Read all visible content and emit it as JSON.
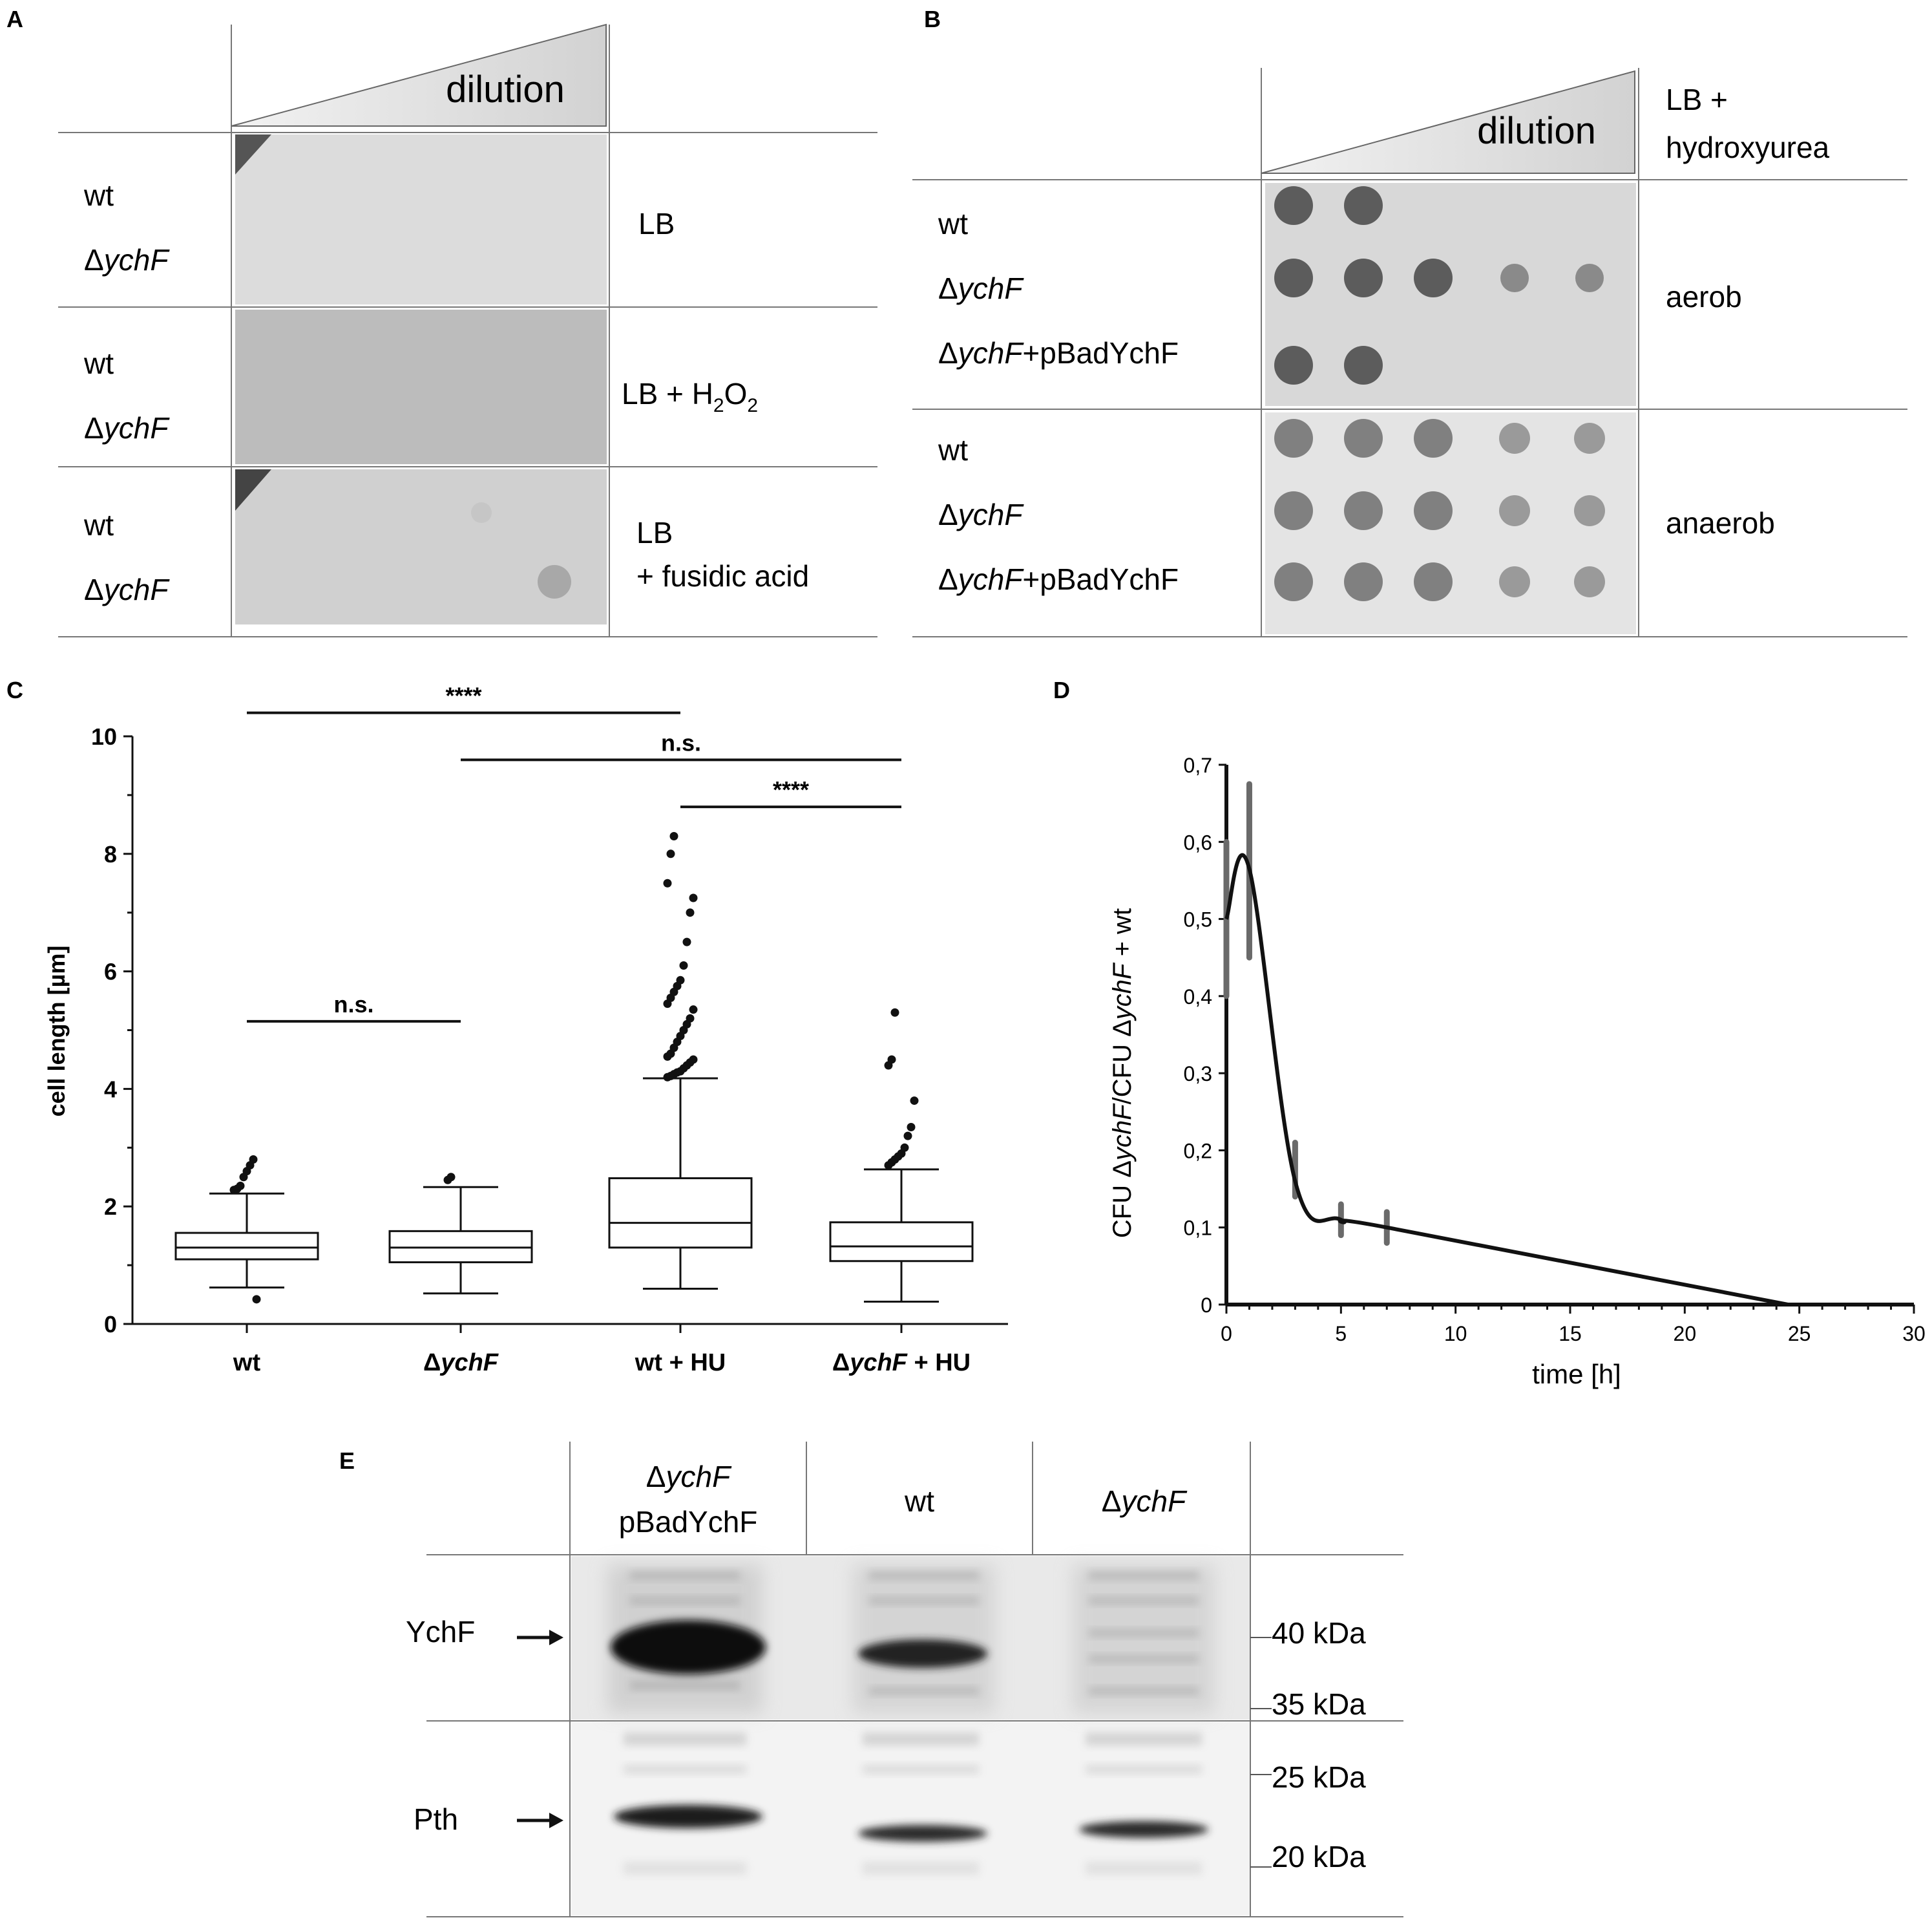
{
  "panel_a": {
    "letter": "A",
    "dilution_label": "dilution",
    "rows": [
      {
        "strains": [
          {
            "prefix": "",
            "italic": "",
            "text": "wt"
          },
          {
            "prefix": "Δ",
            "italic": "ychF",
            "text": ""
          }
        ],
        "condition": [
          "LB"
        ],
        "spots": [
          [
            5,
            5
          ],
          [
            5,
            5
          ]
        ]
      },
      {
        "strains": [
          {
            "prefix": "",
            "italic": "",
            "text": "wt"
          },
          {
            "prefix": "Δ",
            "italic": "ychF",
            "text": ""
          }
        ],
        "condition": [
          "LB + H2O2"
        ],
        "spots": [
          [
            2,
            0
          ],
          [
            5,
            5
          ]
        ]
      },
      {
        "strains": [
          {
            "prefix": "",
            "italic": "",
            "text": "wt"
          },
          {
            "prefix": "Δ",
            "italic": "ychF",
            "text": ""
          }
        ],
        "condition": [
          "LB",
          "+ fusidic acid"
        ],
        "spots": [
          [
            3,
            0
          ],
          [
            5,
            5
          ]
        ]
      }
    ],
    "condition_h2o2": {
      "base": "LB + H",
      "sub1": "2",
      "mid": "O",
      "sub2": "2"
    }
  },
  "panel_b": {
    "letter": "B",
    "dilution_label": "dilution",
    "header_condition": [
      "LB +",
      "hydroxyurea"
    ],
    "rows": [
      {
        "strains": [
          "wt",
          "ΔychF",
          "ΔychF+pBadYchF"
        ],
        "condition": "aerob"
      },
      {
        "strains": [
          "wt",
          "ΔychF",
          "ΔychF+pBadYchF"
        ],
        "condition": "anaerob"
      }
    ],
    "strain_parts": [
      {
        "prefix": "",
        "italic": "",
        "suffix": "wt"
      },
      {
        "prefix": "Δ",
        "italic": "ychF",
        "suffix": ""
      },
      {
        "prefix": "Δ",
        "italic": "ychF",
        "suffix": "+pBadYchF"
      }
    ]
  },
  "panel_c": {
    "letter": "C",
    "chart_data": {
      "type": "box",
      "ylabel": "cell length [µm]",
      "ylim": [
        0,
        10
      ],
      "yticks": [
        "0",
        "2",
        "4",
        "6",
        "8",
        "10"
      ],
      "categories": [
        {
          "prefix": "",
          "italic": "",
          "suffix": "wt"
        },
        {
          "prefix": "Δ",
          "italic": "ychF",
          "suffix": ""
        },
        {
          "prefix": "",
          "italic": "",
          "suffix": "wt + HU"
        },
        {
          "prefix": "Δ",
          "italic": "ychF",
          "suffix": " + HU"
        }
      ],
      "boxes": [
        {
          "min": 0.62,
          "q1": 1.1,
          "median": 1.3,
          "q3": 1.55,
          "max": 2.22,
          "outliers": [
            2.28,
            2.3,
            2.35,
            2.5,
            2.6,
            2.7,
            2.8,
            0.42
          ]
        },
        {
          "min": 0.52,
          "q1": 1.05,
          "median": 1.3,
          "q3": 1.58,
          "max": 2.33,
          "outliers": [
            2.45,
            2.5
          ]
        },
        {
          "min": 0.6,
          "q1": 1.3,
          "median": 1.72,
          "q3": 2.48,
          "max": 4.18,
          "outliers": [
            4.2,
            4.22,
            4.25,
            4.28,
            4.3,
            4.35,
            4.4,
            4.45,
            4.5,
            4.55,
            4.6,
            4.7,
            4.8,
            4.9,
            5.0,
            5.1,
            5.2,
            5.35,
            5.45,
            5.55,
            5.65,
            5.75,
            5.85,
            6.1,
            6.5,
            7.0,
            7.25,
            7.5,
            8.0,
            8.3
          ]
        },
        {
          "min": 0.38,
          "q1": 1.07,
          "median": 1.32,
          "q3": 1.73,
          "max": 2.63,
          "outliers": [
            2.7,
            2.75,
            2.8,
            2.85,
            2.9,
            3.0,
            3.2,
            3.35,
            3.8,
            4.4,
            4.5,
            5.3
          ]
        }
      ],
      "significance": [
        {
          "from": 0,
          "to": 2,
          "label": "****",
          "y": 10.4
        },
        {
          "from": 1,
          "to": 3,
          "label": "n.s.",
          "y": 9.6
        },
        {
          "from": 2,
          "to": 3,
          "label": "****",
          "y": 8.8
        },
        {
          "from": 0,
          "to": 1,
          "label": "n.s.",
          "y": 5.15
        }
      ]
    }
  },
  "panel_d": {
    "letter": "D",
    "chart_data": {
      "type": "line",
      "xlabel": "time [h]",
      "ylabel_parts": {
        "a": "CFU ",
        "b": "Δ",
        "c": "ychF",
        "d": "/CFU ",
        "e": "Δ",
        "f": "ychF",
        "g": " + wt"
      },
      "xlim": [
        0,
        30
      ],
      "ylim": [
        0,
        0.7
      ],
      "xticks": [
        "0",
        "5",
        "10",
        "15",
        "20",
        "25",
        "30"
      ],
      "yticks": [
        "0",
        "0,1",
        "0,2",
        "0,3",
        "0,4",
        "0,5",
        "0,6",
        "0,7"
      ],
      "x": [
        0,
        1,
        3,
        5,
        7,
        24.5
      ],
      "y": [
        0.5,
        0.565,
        0.16,
        0.11,
        0.1,
        0
      ],
      "error_bars": [
        {
          "x": 0,
          "low": 0.4,
          "high": 0.6
        },
        {
          "x": 1,
          "low": 0.45,
          "high": 0.675
        },
        {
          "x": 3,
          "low": 0.14,
          "high": 0.21
        },
        {
          "x": 5,
          "low": 0.09,
          "high": 0.13
        },
        {
          "x": 7,
          "low": 0.08,
          "high": 0.12
        }
      ]
    }
  },
  "panel_e": {
    "letter": "E",
    "lanes": [
      {
        "lines": [
          {
            "prefix": "Δ",
            "italic": "ychF",
            "suffix": ""
          },
          {
            "prefix": "",
            "italic": "",
            "suffix": "pBadYchF"
          }
        ]
      },
      {
        "lines": [
          {
            "prefix": "",
            "italic": "",
            "suffix": "wt"
          }
        ]
      },
      {
        "lines": [
          {
            "prefix": "Δ",
            "italic": "ychF",
            "suffix": ""
          }
        ]
      }
    ],
    "row_labels": [
      "YchF",
      "Pth"
    ],
    "markers": [
      "40 kDa",
      "35 kDa",
      "25 kDa",
      "20 kDa"
    ]
  }
}
